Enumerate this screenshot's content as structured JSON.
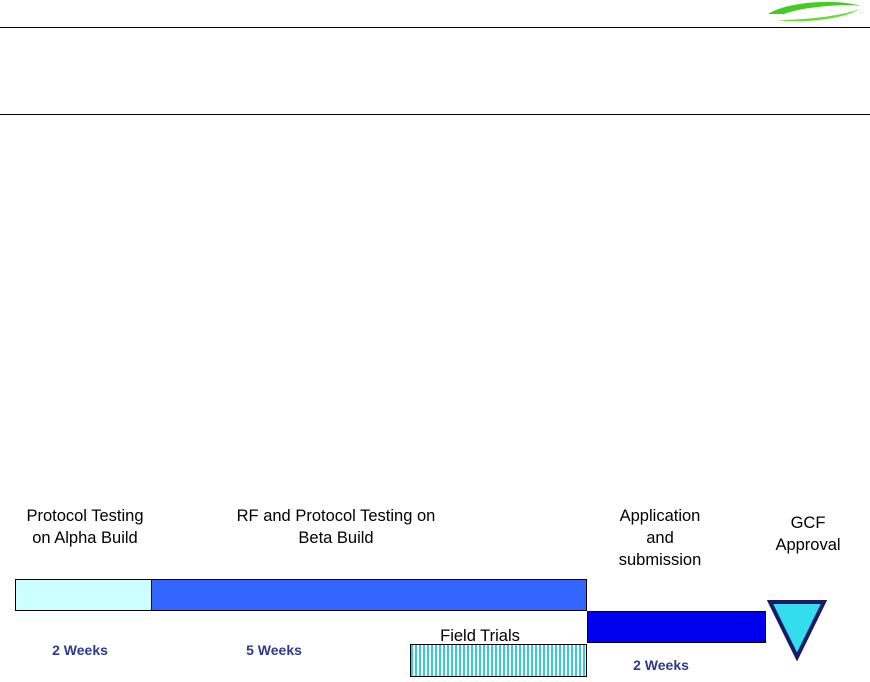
{
  "header": {
    "logo_icon": "green-swoosh-logo-icon"
  },
  "timeline": {
    "phases": [
      {
        "label": "Protocol Testing\non Alpha Build",
        "duration": "2 Weeks",
        "color": "#ccffff"
      },
      {
        "label": "RF and Protocol Testing on\nBeta Build",
        "duration": "5 Weeks",
        "color": "#3366ff"
      },
      {
        "label": "Field Trials",
        "color": "#33ccdd"
      },
      {
        "label": "Application\nand\nsubmission",
        "duration": "2 Weeks",
        "color": "#0000ee"
      }
    ],
    "milestone": {
      "label": "GCF\nApproval",
      "icon": "downward-triangle-icon",
      "color": "#33ddee"
    }
  }
}
